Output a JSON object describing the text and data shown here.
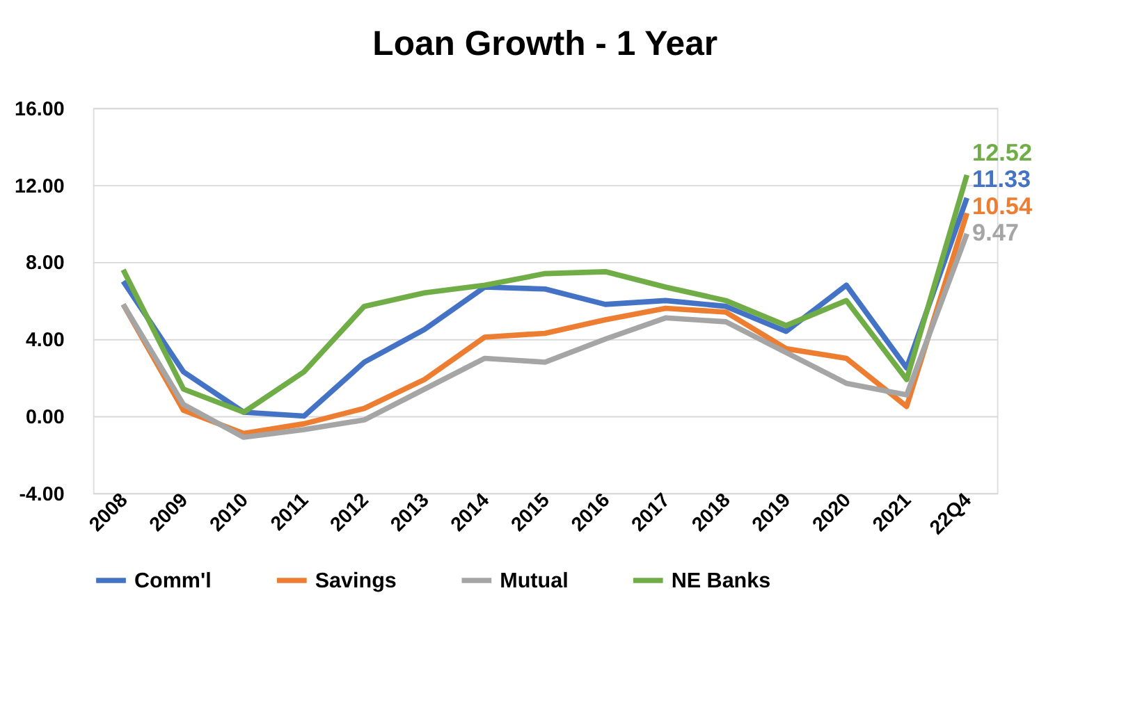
{
  "chart_data": {
    "type": "line",
    "title": "Loan Growth - 1 Year",
    "categories": [
      "2008",
      "2009",
      "2010",
      "2011",
      "2012",
      "2013",
      "2014",
      "2015",
      "2016",
      "2017",
      "2018",
      "2019",
      "2020",
      "2021",
      "22Q4"
    ],
    "series": [
      {
        "name": "Comm'l",
        "color": "#4472c4",
        "values": [
          7.0,
          2.3,
          0.2,
          0.0,
          2.8,
          4.5,
          6.7,
          6.6,
          5.8,
          6.0,
          5.7,
          4.4,
          6.8,
          2.5,
          11.33
        ],
        "value_labels": [
          null,
          null,
          null,
          null,
          null,
          null,
          null,
          null,
          null,
          null,
          null,
          null,
          null,
          null,
          "11.33"
        ]
      },
      {
        "name": "Savings",
        "color": "#ed7d31",
        "values": [
          5.8,
          0.3,
          -0.9,
          -0.4,
          0.4,
          1.9,
          4.1,
          4.3,
          5.0,
          5.6,
          5.4,
          3.5,
          3.0,
          0.5,
          10.54
        ],
        "value_labels": [
          null,
          null,
          null,
          null,
          null,
          null,
          null,
          null,
          null,
          null,
          null,
          null,
          null,
          null,
          "10.54"
        ]
      },
      {
        "name": "Mutual",
        "color": "#a5a5a5",
        "values": [
          5.8,
          0.6,
          -1.1,
          -0.7,
          -0.2,
          1.4,
          3.0,
          2.8,
          4.0,
          5.1,
          4.9,
          3.3,
          1.7,
          1.1,
          9.47
        ],
        "value_labels": [
          null,
          null,
          null,
          null,
          null,
          null,
          null,
          null,
          null,
          null,
          null,
          null,
          null,
          null,
          "9.47"
        ]
      },
      {
        "name": "NE Banks",
        "color": "#70ad47",
        "values": [
          7.6,
          1.4,
          0.2,
          2.3,
          5.7,
          6.4,
          6.8,
          7.4,
          7.5,
          6.7,
          6.0,
          4.7,
          6.0,
          1.9,
          12.52
        ],
        "value_labels": [
          null,
          null,
          null,
          null,
          null,
          null,
          null,
          null,
          null,
          null,
          null,
          null,
          null,
          null,
          "12.52"
        ]
      }
    ],
    "ylim": [
      -4,
      16
    ],
    "yticks": [
      {
        "value": -4,
        "label": "-4.00"
      },
      {
        "value": 0,
        "label": "0.00"
      },
      {
        "value": 4,
        "label": "4.00"
      },
      {
        "value": 8,
        "label": "8.00"
      },
      {
        "value": 12,
        "label": "12.00"
      },
      {
        "value": 16,
        "label": "16.00"
      }
    ],
    "grid": "y",
    "legend": "bottom",
    "marker": "none",
    "line_style": "solid"
  }
}
